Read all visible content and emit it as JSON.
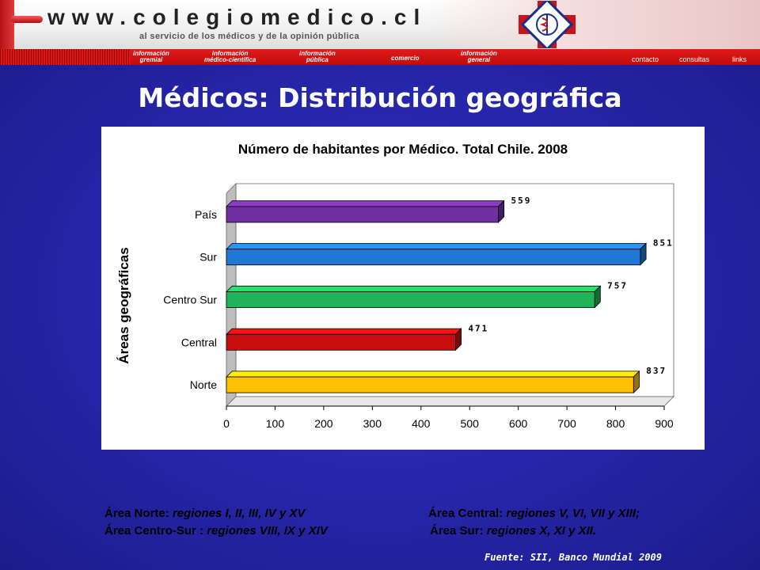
{
  "header": {
    "url": "www.colegiomedico.cl",
    "tagline": "al servicio de los médicos y de la opinión pública",
    "nav_items": [
      {
        "line1": "información",
        "line2": "gremial"
      },
      {
        "line1": "información",
        "line2": "médico-científica"
      },
      {
        "line1": "información",
        "line2": "pública"
      },
      {
        "line1": "comercio",
        "line2": ""
      },
      {
        "line1": "información",
        "line2": "general"
      }
    ],
    "nav_right": [
      "contacto",
      "consultas",
      "links"
    ],
    "colors": {
      "brand_red": "#d81818",
      "background_blue": "#2a2aae"
    }
  },
  "slide_title": "Médicos: Distribución geográfica",
  "chart_data": {
    "type": "bar",
    "orientation": "horizontal",
    "title": "Número de habitantes por Médico. Total Chile. 2008",
    "ylabel": "Áreas geográficas",
    "xlabel": "",
    "categories": [
      "País",
      "Sur",
      "Centro Sur",
      "Central",
      "Norte"
    ],
    "values": [
      559,
      851,
      757,
      471,
      837
    ],
    "value_labels": [
      "559",
      "851",
      "757",
      "471",
      "837"
    ],
    "bar_colors": [
      "#7030a0",
      "#1f78d6",
      "#1fb35a",
      "#c80f0f",
      "#ffc000"
    ],
    "xlim": [
      0,
      900
    ],
    "xticks": [
      "0",
      "100",
      "200",
      "300",
      "400",
      "500",
      "600",
      "700",
      "800",
      "900"
    ],
    "grid": false,
    "legend": "none",
    "style": "3d"
  },
  "notes": {
    "norte_label": "Área Norte: ",
    "norte_regions": "regiones I, II, III, IV y XV",
    "central_label": "Área Central:  ",
    "central_regions": "regiones V, VI, VII y XIII;",
    "centro_sur_label": "Área Centro-Sur : ",
    "centro_sur_regions": "regiones VIII, IX y XIV",
    "sur_label": "Área Sur: ",
    "sur_regions": "regiones X, XI y XII."
  },
  "source": "Fuente: SII, Banco Mundial 2009"
}
